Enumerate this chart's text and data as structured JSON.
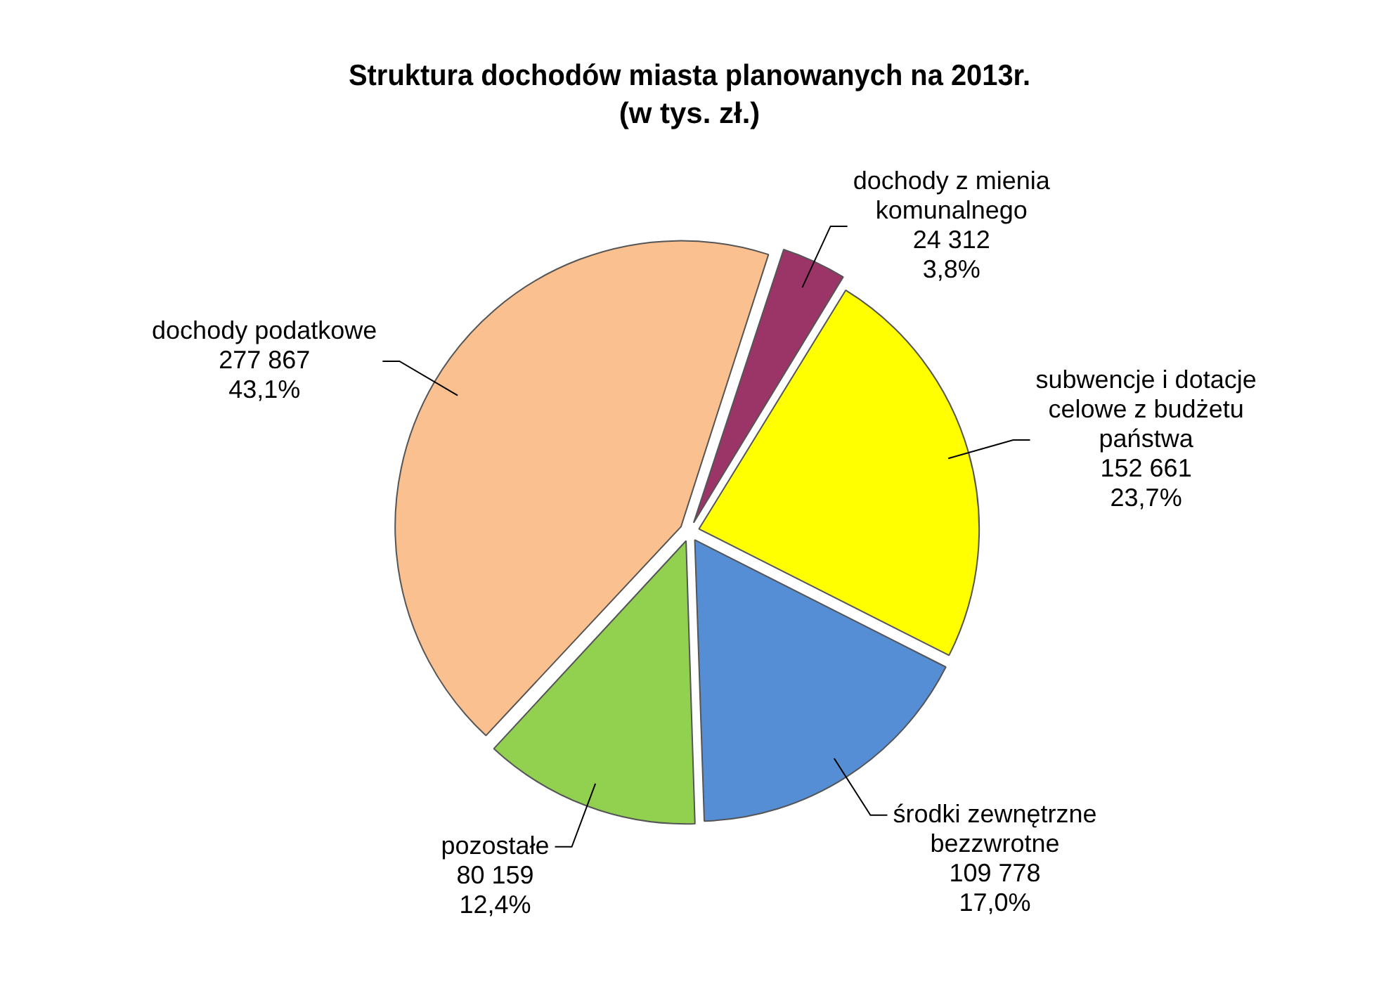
{
  "chart_data": {
    "type": "pie",
    "title": "Struktura dochodów miasta planowanych na 2013r.",
    "subtitle": "(w tys. zł.)",
    "categories": [
      "dochody z mienia komunalnego",
      "subwencje i dotacje celowe z budżetu państwa",
      "środki zewnętrzne bezzwrotne",
      "pozostałe",
      "dochody podatkowe"
    ],
    "values": [
      24312,
      152661,
      109778,
      80159,
      277867
    ],
    "value_labels": [
      "24 312\n3,8%",
      "152 661\n23,7%",
      "109 778\n17,0%",
      "80 159\n12,4%",
      "277 867\n43,1%"
    ],
    "colors": [
      "#9b3467",
      "#ffff00",
      "#558ed5",
      "#92d050",
      "#fac090"
    ],
    "legend": false
  }
}
